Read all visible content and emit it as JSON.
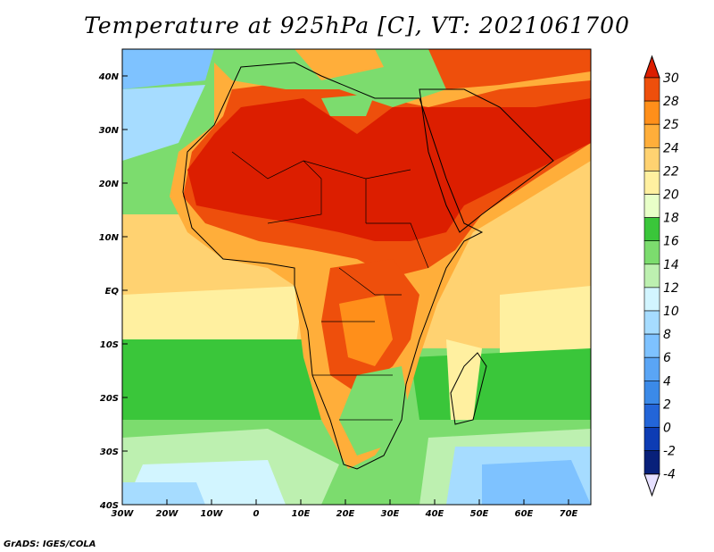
{
  "title": "Temperature at 925hPa [C], VT: 2021061700",
  "credit": "GrADS: IGES/COLA",
  "map": {
    "lon_range": [
      -30,
      75
    ],
    "lat_range": [
      -40,
      45
    ],
    "x_tick_labels": [
      "30W",
      "20W",
      "10W",
      "0",
      "10E",
      "20E",
      "30E",
      "40E",
      "50E",
      "60E",
      "70E"
    ],
    "y_tick_labels": [
      "40S",
      "30S",
      "20S",
      "10S",
      "EQ",
      "10N",
      "20N",
      "30N",
      "40N"
    ]
  },
  "colorbar": {
    "levels": [
      "30",
      "28",
      "25",
      "24",
      "22",
      "20",
      "18",
      "16",
      "14",
      "12",
      "10",
      "8",
      "6",
      "4",
      "2",
      "0",
      "-2",
      "-4"
    ],
    "colors": [
      "#dc1e00",
      "#ee4f0c",
      "#ff8f1a",
      "#ffae3a",
      "#ffd271",
      "#fff0a0",
      "#e8ffc8",
      "#3ac63a",
      "#7cdc6e",
      "#bdf0b0",
      "#d2f5ff",
      "#a6dcff",
      "#7ec2ff",
      "#5aa5f5",
      "#3b8ae8",
      "#2365d8",
      "#0d3cb4",
      "#08207a",
      "#0a1060"
    ],
    "top_arrow_color": "#dc1e00",
    "bottom_arrow_color": "#e6e0ff"
  }
}
